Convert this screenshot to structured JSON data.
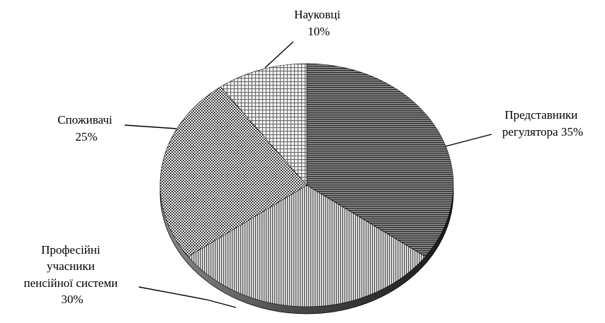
{
  "chart_data": {
    "type": "pie",
    "title": "",
    "slices": [
      {
        "label_lines": [
          "Представники",
          "регулятора 35%"
        ],
        "category": "Представники регулятора",
        "value": 35,
        "pattern": "horizontal-dark"
      },
      {
        "label_lines": [
          "Професійні",
          "учасники",
          "пенсійної системи",
          "30%"
        ],
        "category": "Професійні учасники пенсійної системи",
        "value": 30,
        "pattern": "vertical"
      },
      {
        "label_lines": [
          "Споживачі",
          "25%"
        ],
        "category": "Споживачі",
        "value": 25,
        "pattern": "checker"
      },
      {
        "label_lines": [
          "Науковці",
          "10%"
        ],
        "category": "Науковці",
        "value": 10,
        "pattern": "grid"
      }
    ],
    "units": "%",
    "style": "3d-pie-monochrome-patterns",
    "colors": {
      "outline": "#000000",
      "background": "#ffffff"
    }
  }
}
